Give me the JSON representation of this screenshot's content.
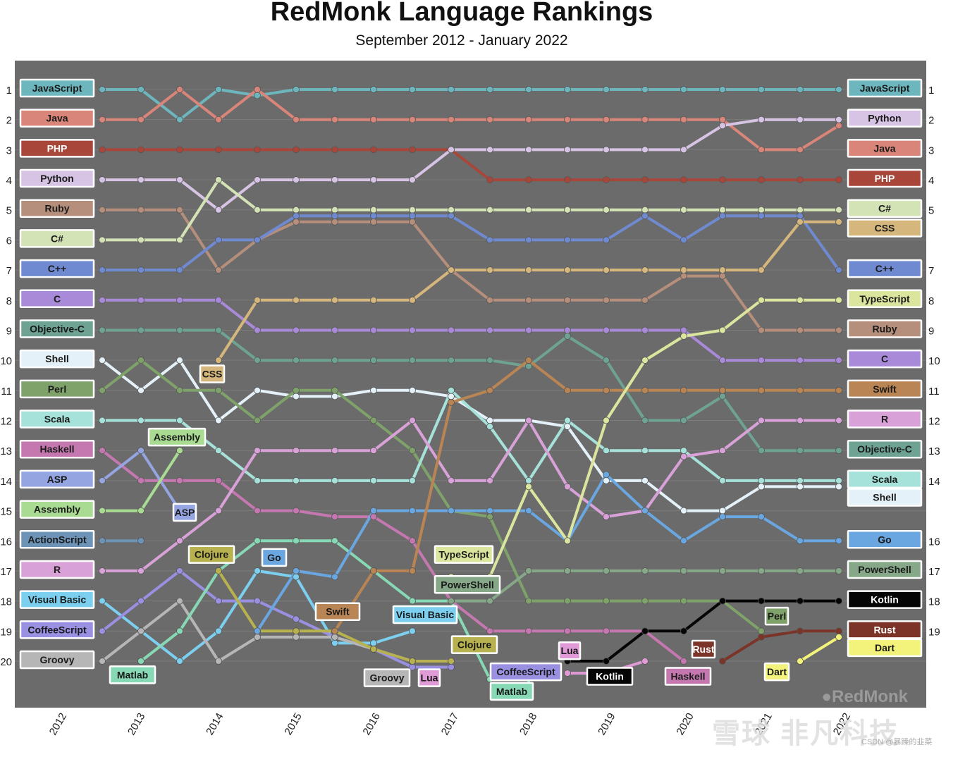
{
  "chart_data": {
    "type": "line",
    "title": "RedMonk Language Rankings",
    "subtitle": "September 2012 - January 2022",
    "brand": "RedMonk",
    "x_ticks": [
      "2012",
      "2013",
      "2014",
      "2015",
      "2016",
      "2017",
      "2018",
      "2019",
      "2020",
      "2021",
      "2022"
    ],
    "periods": [
      "2012 Q3",
      "2013 Q1",
      "2013 Q3",
      "2014 Q1",
      "2014 Q3",
      "2015 Q1",
      "2015 Q3",
      "2016 Q1",
      "2016 Q3",
      "2017 Q1",
      "2017 Q3",
      "2018 Q1",
      "2018 Q3",
      "2019 Q1",
      "2019 Q3",
      "2020 Q1",
      "2020 Q3",
      "2021 Q1",
      "2021 Q3",
      "2022 Q1"
    ],
    "ylim": [
      20,
      1
    ],
    "y_ticks": [
      "1",
      "2",
      "3",
      "4",
      "5",
      "6",
      "7",
      "8",
      "9",
      "10",
      "11",
      "12",
      "13",
      "14",
      "15",
      "16",
      "17",
      "18",
      "19",
      "20"
    ],
    "right_ticks": [
      "1",
      "2",
      "3",
      "4",
      "5",
      "7",
      "8",
      "9",
      "10",
      "11",
      "12",
      "13",
      "14",
      "16",
      "17",
      "18",
      "19"
    ],
    "plot_background": "#6b6b6b",
    "series": [
      {
        "name": "JavaScript",
        "color": "#6db6be",
        "values": [
          1,
          1,
          2,
          1,
          1.2,
          1,
          1,
          1,
          1,
          1,
          1,
          1,
          1,
          1,
          1,
          1,
          1,
          1,
          1,
          1
        ],
        "start_label": "JavaScript",
        "end_label": "JavaScript"
      },
      {
        "name": "Java",
        "color": "#d98579",
        "values": [
          2,
          2,
          1,
          2,
          1,
          2,
          2,
          2,
          2,
          2,
          2,
          2,
          2,
          2,
          2,
          2,
          2,
          3,
          3,
          2.2,
          3
        ],
        "start_label": "Java",
        "end_label": "Java"
      },
      {
        "name": "PHP",
        "color": "#a9463a",
        "values": [
          3,
          3,
          3,
          3,
          3,
          3,
          3,
          3,
          3,
          3,
          4,
          4,
          4,
          4,
          4,
          4,
          4,
          4,
          4,
          4
        ],
        "start_label": "PHP",
        "end_label": "PHP"
      },
      {
        "name": "Python",
        "color": "#d7c4e4",
        "values": [
          4,
          4,
          4,
          5,
          4,
          4,
          4,
          4,
          4,
          3,
          3,
          3,
          3,
          3,
          3,
          3,
          2.2,
          2,
          2,
          2,
          2
        ],
        "start_label": "Python",
        "end_label": "Python"
      },
      {
        "name": "Ruby",
        "color": "#b58e7c",
        "values": [
          5,
          5,
          5,
          7,
          6,
          5.4,
          5.4,
          5.4,
          5.4,
          7,
          8,
          8,
          8,
          8,
          8,
          7.2,
          7.2,
          9,
          9,
          9
        ],
        "start_label": "Ruby",
        "end_label": "Ruby"
      },
      {
        "name": "C#",
        "color": "#d4e3b5",
        "values": [
          6,
          6,
          6,
          4,
          5,
          5,
          5,
          5,
          5,
          5,
          5,
          5,
          5,
          5,
          5,
          5,
          5,
          5,
          5,
          5
        ],
        "start_label": "C#",
        "end_label": "C#"
      },
      {
        "name": "C++",
        "color": "#6f8ad0",
        "values": [
          7,
          7,
          7,
          6,
          6,
          5.2,
          5.2,
          5.2,
          5.2,
          5.2,
          6,
          6,
          6,
          6,
          5.2,
          6,
          5.2,
          5.2,
          5.2,
          7
        ],
        "start_label": "C++",
        "end_label": "C++"
      },
      {
        "name": "C",
        "color": "#a98ad9",
        "values": [
          8,
          8,
          8,
          8,
          9,
          9,
          9,
          9,
          9,
          9,
          9,
          9,
          9,
          9,
          9,
          9,
          10,
          10,
          10,
          10
        ],
        "start_label": "C",
        "end_label": "C"
      },
      {
        "name": "Objective-C",
        "color": "#6ea292",
        "values": [
          9,
          9,
          9,
          9,
          10,
          10,
          10,
          10,
          10,
          10,
          10,
          10.2,
          9.2,
          10,
          12,
          12,
          11.2,
          13,
          13,
          13
        ],
        "start_label": "Objective-C",
        "end_label": "Objective-C"
      },
      {
        "name": "Shell",
        "color": "#e4f1f8",
        "values": [
          10,
          11,
          10,
          12,
          11,
          11.2,
          11.2,
          11,
          11,
          11.2,
          12,
          12,
          12.2,
          14,
          14,
          15,
          15,
          14.2,
          14.2,
          14.2
        ],
        "start_label": "Shell",
        "end_label": "Shell"
      },
      {
        "name": "Perl",
        "color": "#7ea26a",
        "values": [
          11,
          10,
          11,
          11,
          12,
          11,
          11,
          12,
          13,
          15,
          15.2,
          18,
          18,
          18,
          18,
          18,
          18,
          19
        ],
        "start_label": "Perl",
        "end_label": "Perl"
      },
      {
        "name": "Scala",
        "color": "#a6e2da",
        "values": [
          12,
          12,
          12,
          13,
          14,
          14,
          14,
          14,
          14,
          11,
          12.2,
          14,
          12,
          13,
          13,
          13,
          14,
          14,
          14,
          14
        ],
        "start_label": "Scala",
        "end_label": "Scala"
      },
      {
        "name": "Haskell",
        "color": "#c577b0",
        "values": [
          13,
          14,
          14,
          14,
          15,
          15,
          15.2,
          15.2,
          16,
          18,
          19,
          19,
          19,
          19,
          19,
          20
        ],
        "start_label": "Haskell",
        "end_label": "Haskell"
      },
      {
        "name": "ASP",
        "color": "#95a5e2",
        "values": [
          14,
          13,
          15
        ],
        "start_label": "ASP",
        "end_label": "ASP"
      },
      {
        "name": "Assembly",
        "color": "#a9dc92",
        "values": [
          15,
          15,
          13
        ],
        "start_label": "Assembly",
        "end_label": "Assembly"
      },
      {
        "name": "ActionScript",
        "color": "#6d94b7",
        "values": [
          16,
          16
        ],
        "start_label": "ActionScript"
      },
      {
        "name": "R",
        "color": "#d8a2d8",
        "values": [
          17,
          17,
          16,
          15,
          13,
          13,
          13,
          13,
          12,
          14,
          14,
          12,
          14.2,
          15.2,
          15,
          13.2,
          13,
          12,
          12,
          12
        ],
        "start_label": "R",
        "end_label": "R"
      },
      {
        "name": "Visual Basic",
        "color": "#7ccfef",
        "values": [
          18,
          19,
          20,
          19,
          17,
          17.2,
          19.4,
          19.4,
          19
        ],
        "start_label": "Visual Basic",
        "end_label": "Visual Basic"
      },
      {
        "name": "CoffeeScript",
        "color": "#9a90e2",
        "values": [
          19,
          18,
          17,
          18,
          18,
          18.6,
          19.2,
          19.6,
          20.2,
          20.2
        ],
        "start_label": "CoffeeScript",
        "end_label": "CoffeeScript"
      },
      {
        "name": "Groovy",
        "color": "#b6b6b6",
        "values": [
          20,
          19,
          18,
          20,
          19.2,
          19.2,
          19.2,
          19.6,
          20
        ],
        "start_label": "Groovy",
        "end_label": "Groovy"
      },
      {
        "name": "Matlab",
        "color": "#87d8b5",
        "values": [
          20,
          19,
          17,
          16,
          16,
          16,
          17,
          18,
          18,
          20.6,
          20.6
        ],
        "end_label": "Matlab"
      },
      {
        "name": "Clojure",
        "color": "#b7b14f",
        "values": [
          17,
          19,
          19,
          19,
          19.6,
          20,
          20
        ],
        "end_label": "Clojure"
      },
      {
        "name": "Go",
        "color": "#6aa6e0",
        "values": [
          19,
          17,
          17.2,
          15,
          15,
          15,
          15,
          15,
          16,
          13.8,
          15,
          16,
          15.2,
          15.2,
          16,
          16
        ],
        "end_label": "Go"
      },
      {
        "name": "CSS",
        "color": "#d5b67c",
        "values": [
          10,
          8,
          8,
          8,
          8,
          8,
          7,
          7,
          7,
          7,
          7,
          7,
          7,
          7,
          7,
          5.4,
          5.4,
          5.2
        ],
        "end_label": "CSS"
      },
      {
        "name": "Swift",
        "color": "#b98554",
        "values": [
          19,
          17,
          17,
          11.4,
          11,
          10,
          11,
          11,
          11,
          11,
          11,
          11,
          11,
          11
        ],
        "end_label": "Swift"
      },
      {
        "name": "TypeScript",
        "color": "#dbe59e",
        "values": [
          17.2,
          17.2,
          14.2,
          16,
          12,
          10,
          9.2,
          9,
          8,
          8,
          8
        ],
        "end_label": "TypeScript"
      },
      {
        "name": "PowerShell",
        "color": "#87a888",
        "values": [
          18,
          18,
          17,
          17,
          17,
          17,
          17,
          17,
          17,
          17,
          17
        ],
        "end_label": "PowerShell"
      },
      {
        "name": "Lua",
        "color": "#e09ad6",
        "values": [
          20.4,
          20.4,
          20
        ],
        "end_label": "Lua"
      },
      {
        "name": "Kotlin",
        "color": "#050505",
        "values": [
          20,
          20,
          19,
          19,
          18,
          18,
          18,
          18
        ],
        "end_label": "Kotlin"
      },
      {
        "name": "Rust",
        "color": "#7c3428",
        "values": [
          20,
          19.2,
          19,
          19,
          19
        ],
        "end_label": "Rust"
      },
      {
        "name": "Dart",
        "color": "#f3f27a",
        "values": [
          20,
          19.2
        ],
        "end_label": "Dart"
      }
    ]
  },
  "watermark": "雪球 非凡科技",
  "credit": "CSDN @暴躁的韭菜"
}
